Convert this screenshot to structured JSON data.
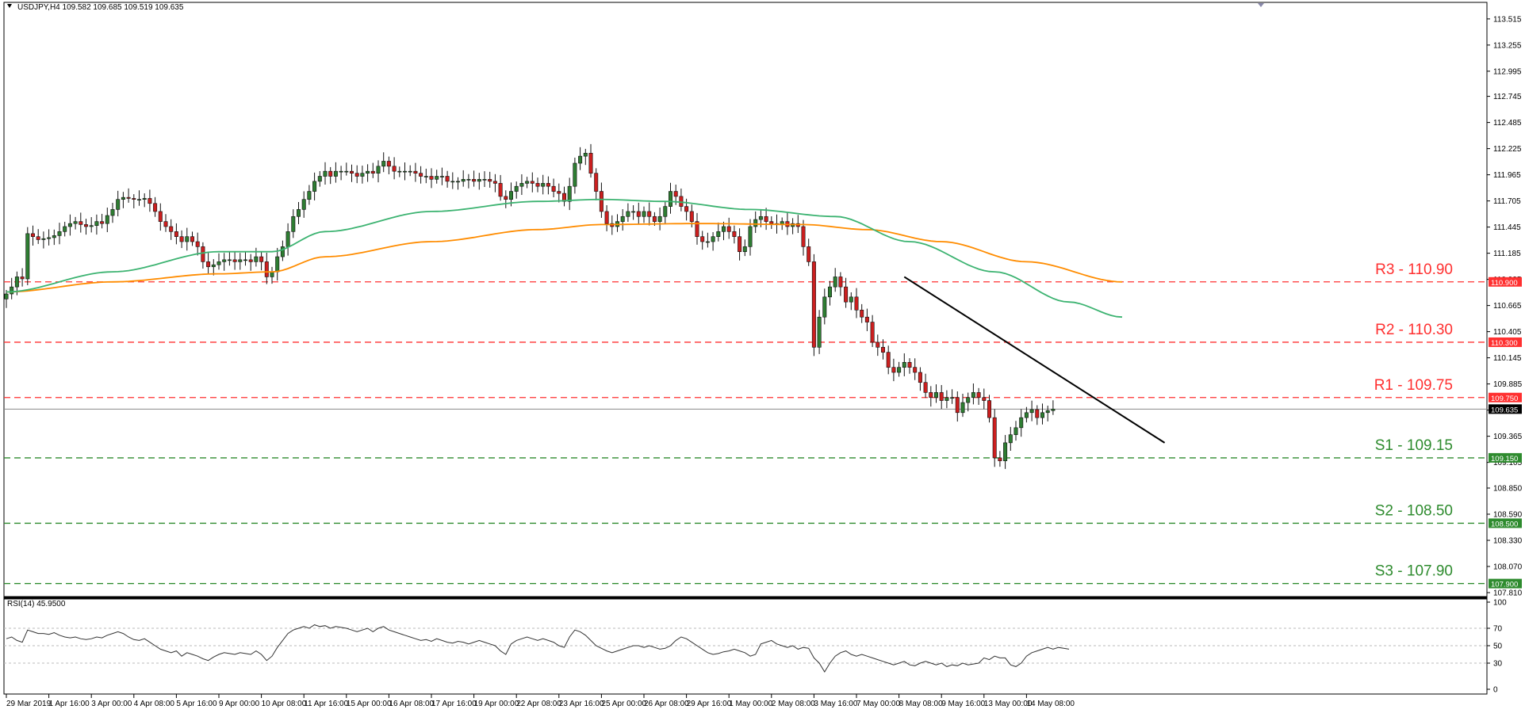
{
  "window": {
    "header": "USDJPY,H4  109.582 109.685 109.519 109.635",
    "rsi_header": "RSI(14) 45.9500"
  },
  "colors": {
    "bull": "#2e7d32",
    "bear": "#cc1f1f",
    "wick": "#111111",
    "ma_fast": "#3cb371",
    "ma_slow": "#ff8c00",
    "resistance": "#ff3030",
    "support": "#2e8b2e",
    "trendline": "#000000",
    "rsi_line": "#333333"
  },
  "chart_data": [
    {
      "type": "candlestick",
      "symbol": "USDJPY",
      "timeframe": "H4",
      "ylim": [
        107.81,
        113.64
      ],
      "y_ticks": [
        "113.515",
        "113.255",
        "112.995",
        "112.745",
        "112.485",
        "112.225",
        "111.965",
        "111.705",
        "111.445",
        "111.185",
        "110.925",
        "110.665",
        "110.405",
        "110.145",
        "109.885",
        "109.625",
        "109.365",
        "109.105",
        "108.850",
        "108.590",
        "108.330",
        "108.070",
        "107.810"
      ],
      "x_labels": [
        "29 Mar 2019",
        "1 Apr 16:00",
        "3 Apr 00:00",
        "4 Apr 08:00",
        "5 Apr 16:00",
        "9 Apr 00:00",
        "10 Apr 08:00",
        "11 Apr 16:00",
        "15 Apr 00:00",
        "16 Apr 08:00",
        "17 Apr 16:00",
        "19 Apr 00:00",
        "22 Apr 08:00",
        "23 Apr 16:00",
        "25 Apr 00:00",
        "26 Apr 08:00",
        "29 Apr 16:00",
        "1 May 00:00",
        "2 May 08:00",
        "3 May 16:00",
        "7 May 00:00",
        "8 May 08:00",
        "9 May 16:00",
        "13 May 00:00",
        "14 May 08:00"
      ],
      "x_label_bar_index": [
        0,
        8,
        16,
        24,
        32,
        40,
        48,
        56,
        64,
        72,
        80,
        88,
        96,
        104,
        112,
        120,
        128,
        136,
        144,
        152,
        160,
        168,
        176,
        184,
        192
      ],
      "closes": [
        110.78,
        110.85,
        110.95,
        110.93,
        111.38,
        111.35,
        111.32,
        111.33,
        111.34,
        111.36,
        111.4,
        111.45,
        111.48,
        111.5,
        111.47,
        111.45,
        111.46,
        111.5,
        111.48,
        111.56,
        111.62,
        111.72,
        111.74,
        111.73,
        111.72,
        111.72,
        111.73,
        111.68,
        111.6,
        111.5,
        111.45,
        111.4,
        111.35,
        111.3,
        111.35,
        111.3,
        111.25,
        111.1,
        111.05,
        111.07,
        111.1,
        111.12,
        111.12,
        111.1,
        111.12,
        111.12,
        111.1,
        111.15,
        111.1,
        110.95,
        111.0,
        111.15,
        111.25,
        111.4,
        111.55,
        111.62,
        111.72,
        111.8,
        111.9,
        111.95,
        112.0,
        111.95,
        112.0,
        112.0,
        112.0,
        111.98,
        111.95,
        111.98,
        112.0,
        111.98,
        112.05,
        112.1,
        112.05,
        112.0,
        112.0,
        112.0,
        112.0,
        111.98,
        111.95,
        111.95,
        111.92,
        111.95,
        111.95,
        111.9,
        111.9,
        111.9,
        111.92,
        111.92,
        111.9,
        111.92,
        111.92,
        111.9,
        111.88,
        111.75,
        111.72,
        111.8,
        111.85,
        111.88,
        111.9,
        111.88,
        111.85,
        111.88,
        111.85,
        111.8,
        111.78,
        111.7,
        111.85,
        112.08,
        112.15,
        112.18,
        111.98,
        111.8,
        111.6,
        111.48,
        111.45,
        111.5,
        111.55,
        111.6,
        111.6,
        111.55,
        111.6,
        111.55,
        111.5,
        111.55,
        111.65,
        111.8,
        111.75,
        111.65,
        111.6,
        111.5,
        111.35,
        111.3,
        111.3,
        111.35,
        111.4,
        111.45,
        111.4,
        111.35,
        111.2,
        111.25,
        111.45,
        111.52,
        111.55,
        111.5,
        111.48,
        111.47,
        111.5,
        111.45,
        111.48,
        111.45,
        111.25,
        111.1,
        110.25,
        110.55,
        110.75,
        110.85,
        110.95,
        110.85,
        110.7,
        110.75,
        110.62,
        110.55,
        110.5,
        110.3,
        110.25,
        110.2,
        110.05,
        110.0,
        110.05,
        110.1,
        110.05,
        110.0,
        109.9,
        109.8,
        109.75,
        109.8,
        109.72,
        109.75,
        109.75,
        109.6,
        109.7,
        109.75,
        109.8,
        109.75,
        109.72,
        109.55,
        109.15,
        109.12,
        109.3,
        109.38,
        109.45,
        109.55,
        109.6,
        109.63,
        109.55,
        109.6,
        109.62,
        109.635
      ],
      "ma_fast_points": [
        [
          0,
          110.8
        ],
        [
          20,
          111.0
        ],
        [
          40,
          111.2
        ],
        [
          50,
          111.2
        ],
        [
          60,
          111.4
        ],
        [
          80,
          111.6
        ],
        [
          100,
          111.7
        ],
        [
          112,
          111.72
        ],
        [
          124,
          111.7
        ],
        [
          140,
          111.62
        ],
        [
          156,
          111.55
        ],
        [
          170,
          111.3
        ],
        [
          186,
          111.0
        ],
        [
          200,
          110.7
        ],
        [
          210,
          110.55
        ]
      ],
      "ma_slow_points": [
        [
          0,
          110.8
        ],
        [
          20,
          110.9
        ],
        [
          40,
          110.98
        ],
        [
          50,
          111.0
        ],
        [
          60,
          111.15
        ],
        [
          80,
          111.3
        ],
        [
          100,
          111.42
        ],
        [
          112,
          111.47
        ],
        [
          130,
          111.48
        ],
        [
          150,
          111.47
        ],
        [
          162,
          111.42
        ],
        [
          176,
          111.3
        ],
        [
          192,
          111.1
        ],
        [
          210,
          110.9
        ]
      ],
      "levels": [
        {
          "label": "R3 - 110.90",
          "price": 110.9,
          "tag": "110.900",
          "kind": "resistance"
        },
        {
          "label": "R2 - 110.30",
          "price": 110.3,
          "tag": "110.300",
          "kind": "resistance"
        },
        {
          "label": "R1 - 109.75",
          "price": 109.75,
          "tag": "109.750",
          "kind": "resistance"
        },
        {
          "label": "S1 - 109.15",
          "price": 109.15,
          "tag": "109.150",
          "kind": "support"
        },
        {
          "label": "S2 - 108.50",
          "price": 108.5,
          "tag": "108.500",
          "kind": "support"
        },
        {
          "label": "S3 - 107.90",
          "price": 107.9,
          "tag": "107.900",
          "kind": "support"
        }
      ],
      "current_price": {
        "price": 109.635,
        "tag": "109.635"
      },
      "trendline": [
        [
          169,
          110.95
        ],
        [
          218,
          109.3
        ]
      ]
    },
    {
      "type": "line",
      "name": "RSI(14)",
      "ylim": [
        0,
        100
      ],
      "y_ticks": [
        "100",
        "70",
        "50",
        "30",
        "0"
      ],
      "level_lines": [
        70,
        50,
        30
      ],
      "values": [
        58,
        60,
        56,
        54,
        68,
        66,
        64,
        64,
        63,
        65,
        62,
        60,
        59,
        60,
        58,
        57,
        58,
        60,
        59,
        62,
        64,
        66,
        64,
        60,
        57,
        56,
        58,
        54,
        50,
        46,
        44,
        42,
        44,
        38,
        42,
        40,
        38,
        35,
        33,
        37,
        40,
        42,
        41,
        40,
        42,
        41,
        40,
        44,
        40,
        33,
        38,
        48,
        56,
        64,
        68,
        70,
        72,
        70,
        74,
        72,
        73,
        70,
        72,
        71,
        70,
        68,
        66,
        68,
        70,
        66,
        70,
        72,
        68,
        66,
        64,
        62,
        60,
        58,
        56,
        57,
        55,
        58,
        56,
        54,
        53,
        55,
        54,
        52,
        54,
        56,
        54,
        52,
        50,
        44,
        40,
        52,
        56,
        58,
        60,
        58,
        56,
        58,
        56,
        54,
        50,
        48,
        60,
        68,
        66,
        62,
        56,
        50,
        47,
        44,
        42,
        44,
        46,
        48,
        50,
        50,
        48,
        50,
        48,
        46,
        47,
        50,
        56,
        60,
        58,
        54,
        50,
        46,
        42,
        40,
        41,
        43,
        44,
        46,
        44,
        42,
        38,
        40,
        52,
        54,
        56,
        52,
        50,
        48,
        50,
        46,
        48,
        47,
        36,
        30,
        20,
        30,
        38,
        42,
        44,
        40,
        38,
        40,
        38,
        36,
        34,
        32,
        30,
        28,
        30,
        32,
        28,
        27,
        30,
        32,
        30,
        28,
        30,
        26,
        28,
        27,
        30,
        28,
        29,
        30,
        36,
        34,
        38,
        36,
        36,
        28,
        26,
        30,
        38,
        42,
        44,
        46,
        48,
        46,
        48,
        47,
        46
      ]
    }
  ]
}
